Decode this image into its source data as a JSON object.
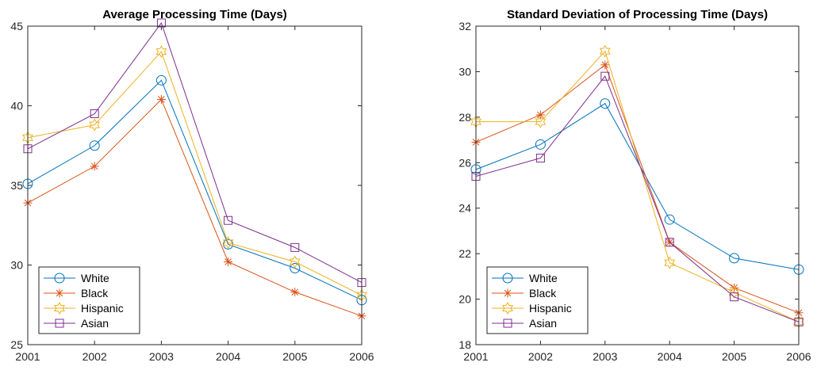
{
  "chart_data": [
    {
      "type": "line",
      "title": "Average Processing Time (Days)",
      "xlabel": "",
      "ylabel": "",
      "x": [
        2001,
        2002,
        2003,
        2004,
        2005,
        2006
      ],
      "xlim": [
        2001,
        2006
      ],
      "ylim": [
        25,
        45
      ],
      "yticks": [
        25,
        30,
        35,
        40,
        45
      ],
      "grid": false,
      "legend_position": "bottom-left",
      "series": [
        {
          "name": "White",
          "color": "#0072BD",
          "marker": "circle",
          "values": [
            35.1,
            37.5,
            41.6,
            31.3,
            29.8,
            27.8
          ]
        },
        {
          "name": "Black",
          "color": "#D95319",
          "marker": "asterisk",
          "values": [
            33.9,
            36.2,
            40.4,
            30.2,
            28.3,
            26.8
          ]
        },
        {
          "name": "Hispanic",
          "color": "#EDB120",
          "marker": "hexagram",
          "values": [
            38.0,
            38.8,
            43.4,
            31.4,
            30.2,
            28.1
          ]
        },
        {
          "name": "Asian",
          "color": "#7E2F8E",
          "marker": "square",
          "values": [
            37.3,
            39.5,
            45.2,
            32.8,
            31.1,
            28.9
          ]
        }
      ]
    },
    {
      "type": "line",
      "title": "Standard Deviation of Processing Time (Days)",
      "xlabel": "",
      "ylabel": "",
      "x": [
        2001,
        2002,
        2003,
        2004,
        2005,
        2006
      ],
      "xlim": [
        2001,
        2006
      ],
      "ylim": [
        18,
        32
      ],
      "yticks": [
        18,
        20,
        22,
        24,
        26,
        28,
        30,
        32
      ],
      "grid": false,
      "legend_position": "bottom-left",
      "series": [
        {
          "name": "White",
          "color": "#0072BD",
          "marker": "circle",
          "values": [
            25.7,
            26.8,
            28.6,
            23.5,
            21.8,
            21.3
          ]
        },
        {
          "name": "Black",
          "color": "#D95319",
          "marker": "asterisk",
          "values": [
            26.9,
            28.1,
            30.3,
            22.5,
            20.5,
            19.4
          ]
        },
        {
          "name": "Hispanic",
          "color": "#EDB120",
          "marker": "hexagram",
          "values": [
            27.8,
            27.8,
            30.9,
            21.6,
            20.3,
            19.0
          ]
        },
        {
          "name": "Asian",
          "color": "#7E2F8E",
          "marker": "square",
          "values": [
            25.4,
            26.2,
            29.8,
            22.5,
            20.1,
            19.0
          ]
        }
      ]
    }
  ]
}
